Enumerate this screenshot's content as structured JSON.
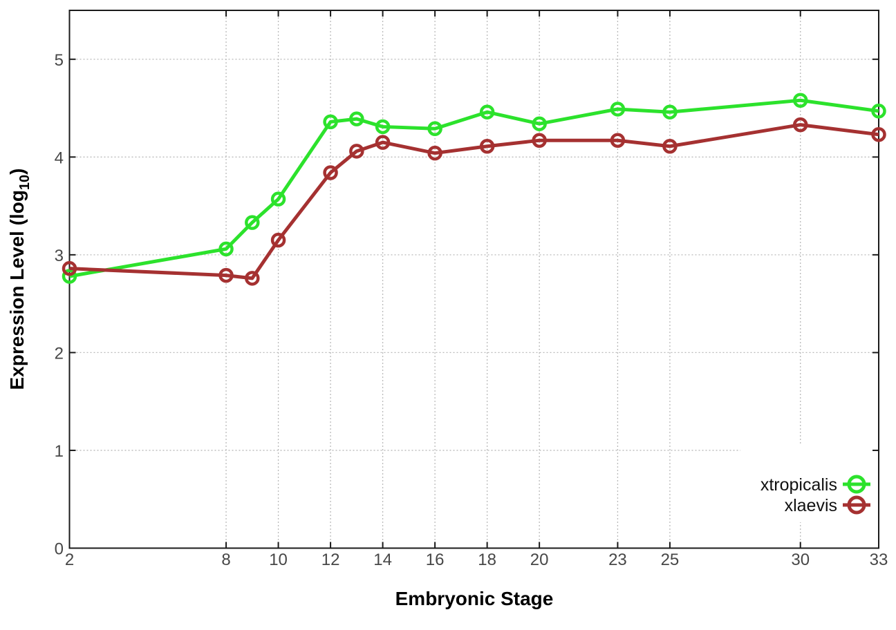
{
  "chart_data": {
    "type": "line",
    "title": "",
    "xlabel": "Embryonic Stage",
    "ylabel": "Expression Level (log10)",
    "ylabel_parts": {
      "main": "Expression Level (log",
      "sub": "10",
      "close": ")"
    },
    "x": [
      2,
      8,
      9,
      10,
      12,
      13,
      14,
      16,
      18,
      20,
      23,
      25,
      30,
      33
    ],
    "series": [
      {
        "name": "xtropicalis",
        "color": "#2ce22c",
        "marker": "open-circle",
        "values": [
          2.78,
          3.06,
          3.33,
          3.57,
          4.36,
          4.39,
          4.31,
          4.29,
          4.46,
          4.34,
          4.49,
          4.46,
          4.58,
          4.47
        ]
      },
      {
        "name": "xlaevis",
        "color": "#a53131",
        "marker": "open-circle",
        "values": [
          2.86,
          2.79,
          2.76,
          3.15,
          3.84,
          4.06,
          4.15,
          4.04,
          4.11,
          4.17,
          4.17,
          4.11,
          4.33,
          4.23
        ]
      }
    ],
    "xticks": [
      2,
      8,
      10,
      12,
      14,
      16,
      18,
      20,
      23,
      25,
      30,
      33
    ],
    "yticks": [
      0,
      1,
      2,
      3,
      4,
      5
    ],
    "xlim": [
      2,
      33
    ],
    "ylim": [
      0,
      5.5
    ],
    "grid": true,
    "legend_position": "bottom-right",
    "legend_entries": [
      "xtropicalis",
      "xlaevis"
    ]
  },
  "styles": {
    "background": "#ffffff",
    "border_color": "#1a1a1a",
    "grid_color": "#b9b9b9",
    "tick_label_color": "#474747",
    "series_green": "#2ce22c",
    "series_dark_red": "#a53131"
  }
}
